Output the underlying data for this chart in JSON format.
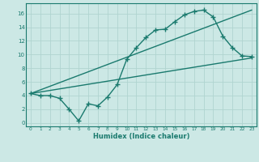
{
  "bg_color": "#cce8e5",
  "grid_color": "#b0d4d0",
  "line_color": "#1a7a6e",
  "line_width": 1.0,
  "marker": "+",
  "marker_size": 4,
  "marker_ew": 1.0,
  "xlabel": "Humidex (Indice chaleur)",
  "xlim": [
    -0.5,
    23.5
  ],
  "ylim": [
    -0.5,
    17.5
  ],
  "xticks": [
    0,
    1,
    2,
    3,
    4,
    5,
    6,
    7,
    8,
    9,
    10,
    11,
    12,
    13,
    14,
    15,
    16,
    17,
    18,
    19,
    20,
    21,
    22,
    23
  ],
  "yticks": [
    0,
    2,
    4,
    6,
    8,
    10,
    12,
    14,
    16
  ],
  "line1_x": [
    0,
    1,
    2,
    3,
    4,
    5,
    6,
    7,
    8,
    9,
    10,
    11,
    12,
    13,
    14,
    15,
    16,
    17,
    18,
    19,
    20,
    21,
    22,
    23
  ],
  "line1_y": [
    4.3,
    4.0,
    4.0,
    3.6,
    2.0,
    0.3,
    2.8,
    2.5,
    3.8,
    5.6,
    9.3,
    11.0,
    12.5,
    13.6,
    13.7,
    14.8,
    15.8,
    16.3,
    16.5,
    15.5,
    12.7,
    11.0,
    9.8,
    9.7
  ],
  "line2_x": [
    0,
    23
  ],
  "line2_y": [
    4.3,
    9.5
  ],
  "line3_x": [
    0,
    23
  ],
  "line3_y": [
    4.3,
    16.5
  ],
  "xlabel_fontsize": 6.0,
  "tick_fontsize_x": 4.2,
  "tick_fontsize_y": 5.0
}
